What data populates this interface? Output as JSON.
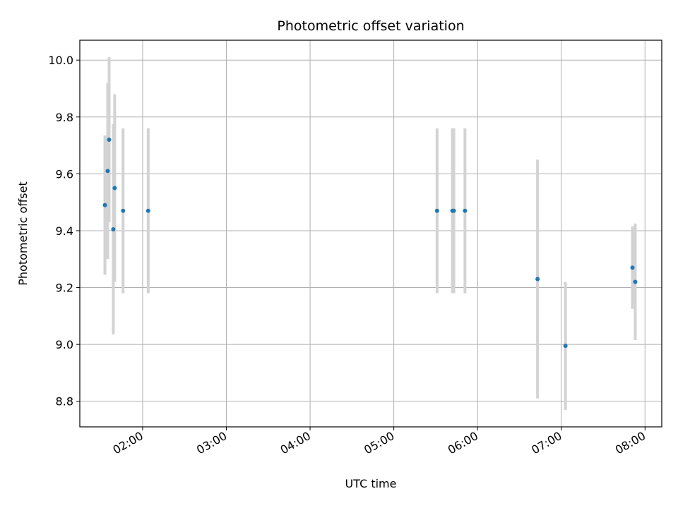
{
  "chart_data": {
    "type": "scatter",
    "title": "Photometric offset variation",
    "xlabel": "UTC time",
    "ylabel": "Photometric offset",
    "xlim": [
      "01:15",
      "08:12"
    ],
    "ylim": [
      8.71,
      10.07
    ],
    "x_ticks": [
      "02:00",
      "03:00",
      "04:00",
      "05:00",
      "06:00",
      "07:00",
      "08:00"
    ],
    "y_ticks": [
      "8.8",
      "9.0",
      "9.2",
      "9.4",
      "9.6",
      "9.8",
      "10.0"
    ],
    "grid": true,
    "series": [
      {
        "points": [
          {
            "x": "01:33",
            "y": 9.49,
            "err": 0.245
          },
          {
            "x": "01:35",
            "y": 9.61,
            "err": 0.31
          },
          {
            "x": "01:36",
            "y": 9.72,
            "err": 0.29
          },
          {
            "x": "01:39",
            "y": 9.405,
            "err": 0.37
          },
          {
            "x": "01:40",
            "y": 9.55,
            "err": 0.33
          },
          {
            "x": "01:46",
            "y": 9.47,
            "err": 0.29
          },
          {
            "x": "02:04",
            "y": 9.47,
            "err": 0.29
          },
          {
            "x": "05:31",
            "y": 9.47,
            "err": 0.29
          },
          {
            "x": "05:42",
            "y": 9.47,
            "err": 0.29
          },
          {
            "x": "05:43",
            "y": 9.47,
            "err": 0.29
          },
          {
            "x": "05:51",
            "y": 9.47,
            "err": 0.29
          },
          {
            "x": "06:43",
            "y": 9.23,
            "err": 0.42
          },
          {
            "x": "07:03",
            "y": 8.995,
            "err": 0.225
          },
          {
            "x": "07:51",
            "y": 9.27,
            "err": 0.145
          },
          {
            "x": "07:53",
            "y": 9.22,
            "err": 0.205
          }
        ]
      }
    ],
    "colors": {
      "point": "#1f77b4",
      "errorbar": "#d3d3d3",
      "grid": "#b0b0b0",
      "axes": "#000000"
    }
  }
}
